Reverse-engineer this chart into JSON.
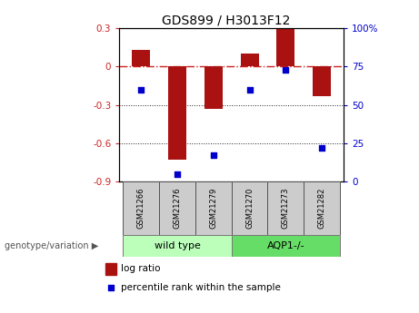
{
  "title": "GDS899 / H3013F12",
  "samples": [
    "GSM21266",
    "GSM21276",
    "GSM21279",
    "GSM21270",
    "GSM21273",
    "GSM21282"
  ],
  "log_ratio": [
    0.13,
    -0.73,
    -0.33,
    0.1,
    0.29,
    -0.23
  ],
  "percentile_rank": [
    60,
    5,
    17,
    60,
    73,
    22
  ],
  "group1_label": "wild type",
  "group2_label": "AQP1-/-",
  "group1_indices": [
    0,
    1,
    2
  ],
  "group2_indices": [
    3,
    4,
    5
  ],
  "ylim_left": [
    -0.9,
    0.3
  ],
  "ylim_right": [
    0,
    100
  ],
  "yticks_left": [
    0.3,
    0,
    -0.3,
    -0.6,
    -0.9
  ],
  "yticks_right": [
    100,
    75,
    50,
    25,
    0
  ],
  "bar_color": "#aa1111",
  "dot_color": "#0000cc",
  "group1_bg": "#bbffbb",
  "group2_bg": "#66dd66",
  "sample_box_color": "#cccccc",
  "hline_color": "#cc2222",
  "dotgrid_color": "#222222",
  "legend_red_label": "log ratio",
  "legend_blue_label": "percentile rank within the sample",
  "genotype_label": "genotype/variation"
}
